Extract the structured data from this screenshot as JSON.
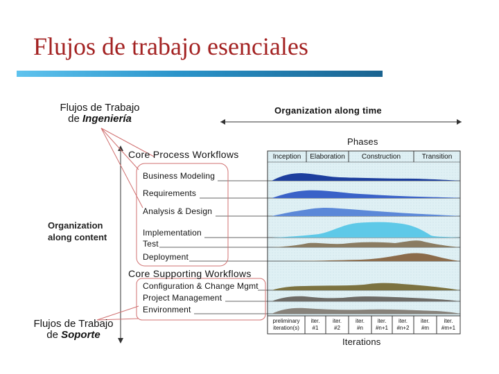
{
  "slide": {
    "title": "Flujos de trabajo esenciales"
  },
  "labels": {
    "engineering_line1": "Flujos de Trabajo",
    "engineering_line2_prefix": "de",
    "engineering_line2_em": "Ingeniería",
    "support_line1": "Flujos de Trabajo",
    "support_line2_prefix": "de",
    "support_line2_em": "Soporte",
    "org_time": "Organization along time",
    "org_content_line1": "Organization",
    "org_content_line2": "along content",
    "phases": "Phases",
    "core_process": "Core Process Workflows",
    "core_supporting": "Core Supporting Workflows",
    "iterations": "Iterations"
  },
  "process_workflows": [
    {
      "label": "Business Modeling"
    },
    {
      "label": "Requirements"
    },
    {
      "label": "Analysis & Design"
    },
    {
      "label": "Implementation"
    },
    {
      "label": "Test"
    },
    {
      "label": "Deployment"
    }
  ],
  "supporting_workflows": [
    {
      "label": "Configuration & Change Mgmt"
    },
    {
      "label": "Project Management"
    },
    {
      "label": "Environment"
    }
  ],
  "phases": [
    {
      "label": "Inception"
    },
    {
      "label": "Elaboration"
    },
    {
      "label": "Construction"
    },
    {
      "label": "Transition"
    }
  ],
  "iterations": [
    {
      "line1": "preliminary",
      "line2": "iteration(s)"
    },
    {
      "line1": "iter.",
      "line2": "#1"
    },
    {
      "line1": "iter.",
      "line2": "#2"
    },
    {
      "line1": "iter.",
      "line2": "#n"
    },
    {
      "line1": "iter.",
      "line2": "#n+1"
    },
    {
      "line1": "iter.",
      "line2": "#n+2"
    },
    {
      "line1": "iter.",
      "line2": "#m"
    },
    {
      "line1": "iter.",
      "line2": "#m+1"
    }
  ],
  "colors": {
    "title": "#a32222",
    "chart_bg": "#dff0f4",
    "business_modeling": "#1d3f9e",
    "requirements": "#3a62c8",
    "analysis_design": "#5b88d8",
    "implementation": "#5ec9e8",
    "test": "#8a7c62",
    "deployment": "#8b6b4a",
    "config_change": "#7c7240",
    "project_mgmt": "#6e6b66",
    "environment": "#87827a",
    "callout": "#d07070"
  }
}
